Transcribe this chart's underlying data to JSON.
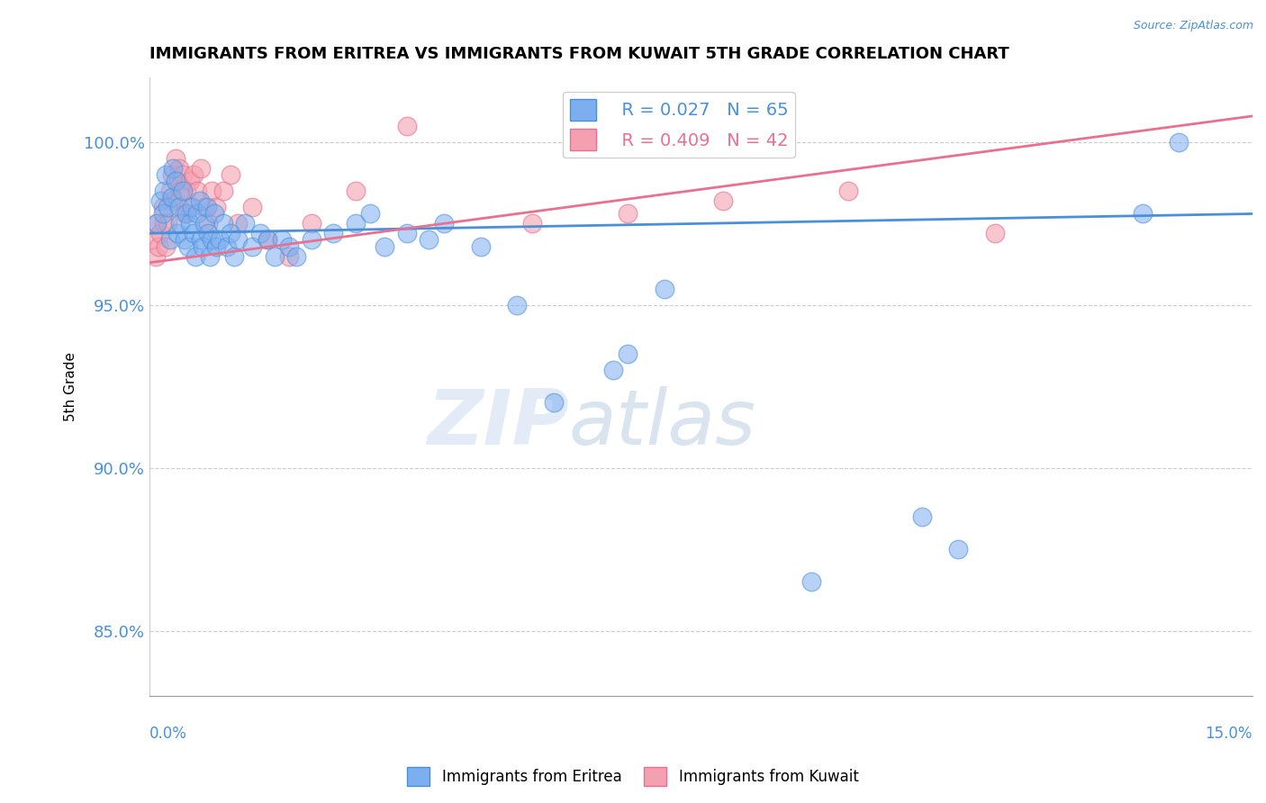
{
  "title": "IMMIGRANTS FROM ERITREA VS IMMIGRANTS FROM KUWAIT 5TH GRADE CORRELATION CHART",
  "source": "Source: ZipAtlas.com",
  "ylabel": "5th Grade",
  "yticks": [
    85.0,
    90.0,
    95.0,
    100.0
  ],
  "xlim": [
    0.0,
    15.0
  ],
  "ylim": [
    83.0,
    102.0
  ],
  "R_blue": 0.027,
  "N_blue": 65,
  "R_pink": 0.409,
  "N_pink": 42,
  "blue_color": "#7daef0",
  "pink_color": "#f4a0b0",
  "blue_edge_color": "#4a90d9",
  "pink_edge_color": "#e87090",
  "blue_line_color": "#4a90d9",
  "pink_line_color": "#e87090",
  "text_color": "#4a90d9",
  "legend_label_blue": "Immigrants from Eritrea",
  "legend_label_pink": "Immigrants from Kuwait",
  "blue_trend_x": [
    0.0,
    15.0
  ],
  "blue_trend_y": [
    97.2,
    97.8
  ],
  "pink_trend_x": [
    0.0,
    15.0
  ],
  "pink_trend_y": [
    96.3,
    100.8
  ],
  "blue_scatter_x": [
    0.1,
    0.15,
    0.18,
    0.2,
    0.22,
    0.25,
    0.28,
    0.3,
    0.32,
    0.35,
    0.38,
    0.4,
    0.42,
    0.45,
    0.48,
    0.5,
    0.52,
    0.55,
    0.58,
    0.6,
    0.62,
    0.65,
    0.68,
    0.7,
    0.72,
    0.75,
    0.78,
    0.8,
    0.82,
    0.85,
    0.88,
    0.9,
    0.95,
    1.0,
    1.05,
    1.1,
    1.15,
    1.2,
    1.3,
    1.4,
    1.5,
    1.6,
    1.7,
    1.8,
    1.9,
    2.0,
    2.2,
    2.5,
    2.8,
    3.0,
    3.2,
    3.5,
    3.8,
    4.0,
    4.5,
    5.0,
    5.5,
    6.3,
    6.5,
    7.0,
    9.0,
    10.5,
    11.0,
    13.5,
    14.0
  ],
  "blue_scatter_y": [
    97.5,
    98.2,
    97.8,
    98.5,
    99.0,
    98.0,
    97.0,
    98.3,
    99.2,
    98.8,
    97.2,
    98.0,
    97.5,
    98.5,
    97.0,
    97.8,
    96.8,
    97.5,
    98.0,
    97.2,
    96.5,
    97.8,
    98.2,
    97.0,
    96.8,
    97.5,
    98.0,
    97.2,
    96.5,
    97.0,
    97.8,
    96.8,
    97.0,
    97.5,
    96.8,
    97.2,
    96.5,
    97.0,
    97.5,
    96.8,
    97.2,
    97.0,
    96.5,
    97.0,
    96.8,
    96.5,
    97.0,
    97.2,
    97.5,
    97.8,
    96.8,
    97.2,
    97.0,
    97.5,
    96.8,
    95.0,
    92.0,
    93.0,
    93.5,
    95.5,
    86.5,
    88.5,
    87.5,
    97.8,
    100.0
  ],
  "pink_scatter_x": [
    0.05,
    0.08,
    0.1,
    0.12,
    0.15,
    0.18,
    0.2,
    0.22,
    0.25,
    0.28,
    0.3,
    0.32,
    0.35,
    0.38,
    0.4,
    0.42,
    0.45,
    0.48,
    0.5,
    0.52,
    0.55,
    0.6,
    0.65,
    0.7,
    0.75,
    0.8,
    0.85,
    0.9,
    1.0,
    1.1,
    1.2,
    1.4,
    1.6,
    1.9,
    2.2,
    2.8,
    3.5,
    5.2,
    6.5,
    7.8,
    9.5,
    11.5
  ],
  "pink_scatter_y": [
    97.0,
    96.5,
    97.5,
    96.8,
    97.2,
    98.0,
    97.5,
    96.8,
    97.5,
    98.5,
    99.0,
    98.2,
    99.5,
    98.8,
    99.2,
    98.5,
    99.0,
    97.8,
    98.5,
    98.0,
    98.8,
    99.0,
    98.5,
    99.2,
    98.0,
    97.5,
    98.5,
    98.0,
    98.5,
    99.0,
    97.5,
    98.0,
    97.0,
    96.5,
    97.5,
    98.5,
    100.5,
    97.5,
    97.8,
    98.2,
    98.5,
    97.2
  ]
}
